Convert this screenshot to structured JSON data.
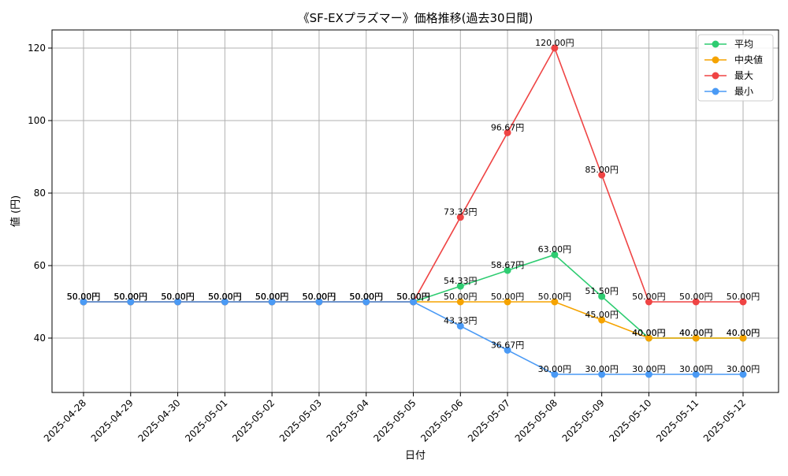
{
  "chart_data": {
    "type": "line",
    "title": "《SF-EXプラズマー》価格推移(過去30日間)",
    "xlabel": "日付",
    "ylabel": "値 (円)",
    "categories": [
      "2025-04-28",
      "2025-04-29",
      "2025-04-30",
      "2025-05-01",
      "2025-05-02",
      "2025-05-03",
      "2025-05-04",
      "2025-05-05",
      "2025-05-06",
      "2025-05-07",
      "2025-05-08",
      "2025-05-09",
      "2025-05-10",
      "2025-05-11",
      "2025-05-12"
    ],
    "ylim": [
      25,
      125
    ],
    "yticks": [
      40,
      60,
      80,
      100,
      120
    ],
    "grid": true,
    "legend_position": "top-right",
    "value_suffix": "円",
    "series": [
      {
        "name": "平均",
        "color": "#2ecc71",
        "values": [
          50,
          50,
          50,
          50,
          50,
          50,
          50,
          50,
          54.33,
          58.67,
          63,
          51.5,
          40,
          40,
          40
        ]
      },
      {
        "name": "中央値",
        "color": "#f5a300",
        "values": [
          50,
          50,
          50,
          50,
          50,
          50,
          50,
          50,
          50,
          50,
          50,
          45,
          40,
          40,
          40
        ]
      },
      {
        "name": "最大",
        "color": "#ef4444",
        "values": [
          50,
          50,
          50,
          50,
          50,
          50,
          50,
          50,
          73.33,
          96.67,
          120,
          85,
          50,
          50,
          50
        ]
      },
      {
        "name": "最小",
        "color": "#4a9af5",
        "values": [
          50,
          50,
          50,
          50,
          50,
          50,
          50,
          50,
          43.33,
          36.67,
          30,
          30,
          30,
          30,
          30
        ]
      }
    ]
  }
}
